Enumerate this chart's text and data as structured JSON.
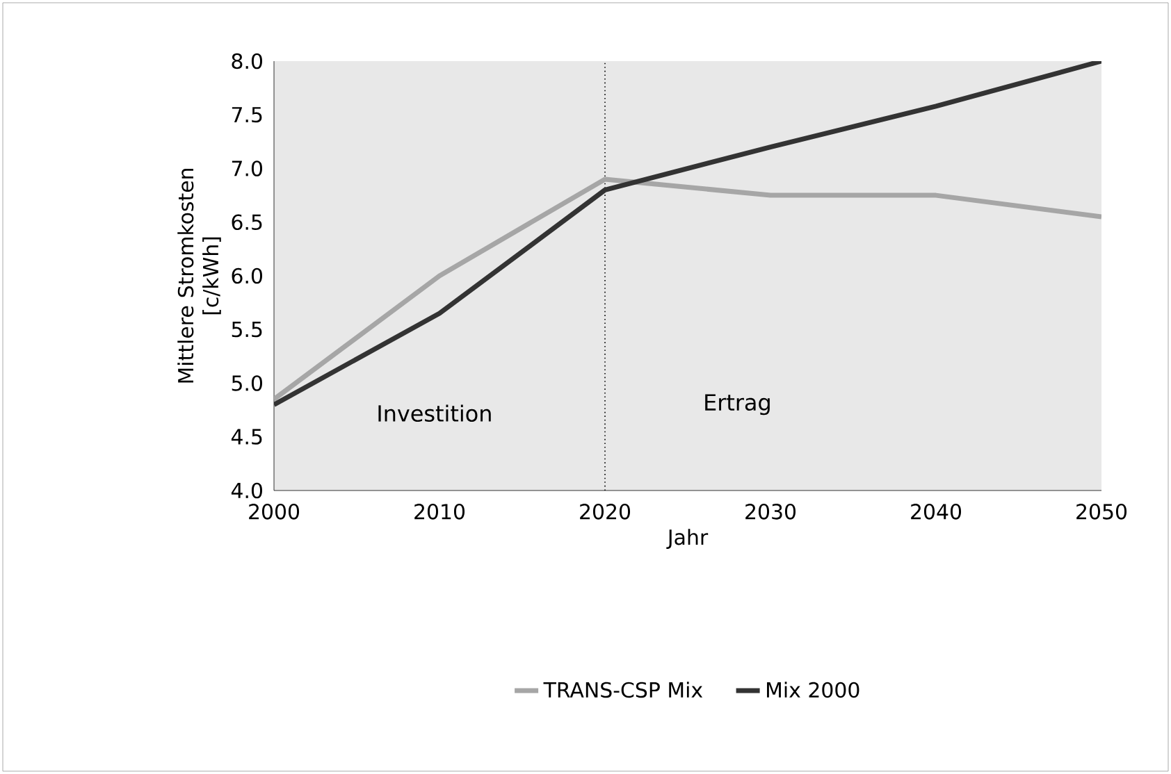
{
  "chart_data": {
    "type": "line",
    "xlabel": "Jahr",
    "ylabel": "Mittlere Stromkosten [c/kWh]",
    "x": [
      2000,
      2010,
      2020,
      2030,
      2040,
      2050
    ],
    "series": [
      {
        "name": "TRANS-CSP Mix",
        "color": "#a6a6a6",
        "values": [
          4.85,
          6.0,
          6.9,
          6.75,
          6.75,
          6.55
        ]
      },
      {
        "name": "Mix 2000",
        "color": "#333333",
        "values": [
          4.8,
          5.65,
          6.8,
          7.2,
          7.58,
          8.0
        ]
      }
    ],
    "xlim": [
      2000,
      2050
    ],
    "xticks": [
      2000,
      2010,
      2020,
      2030,
      2040,
      2050
    ],
    "ylim": [
      4,
      8
    ],
    "yticks": [
      {
        "value": 4,
        "label": "4.0"
      },
      {
        "value": 4.5,
        "label": "4.5"
      },
      {
        "value": 5,
        "label": "5.0"
      },
      {
        "value": 5.5,
        "label": "5.5"
      },
      {
        "value": 6,
        "label": "6.0"
      },
      {
        "value": 6.5,
        "label": "6.5"
      },
      {
        "value": 7,
        "label": "7.0"
      },
      {
        "value": 7.5,
        "label": "7.5"
      },
      {
        "value": 8,
        "label": "8.0"
      }
    ],
    "ref_lines": [
      {
        "axis": "x",
        "value": 2020,
        "color": "#000000",
        "line_style": "dotted"
      }
    ],
    "annotations": [
      "Investition",
      "Ertrag"
    ],
    "legend": "bottom",
    "grid": false,
    "marker": "none",
    "line_style": "solid"
  }
}
